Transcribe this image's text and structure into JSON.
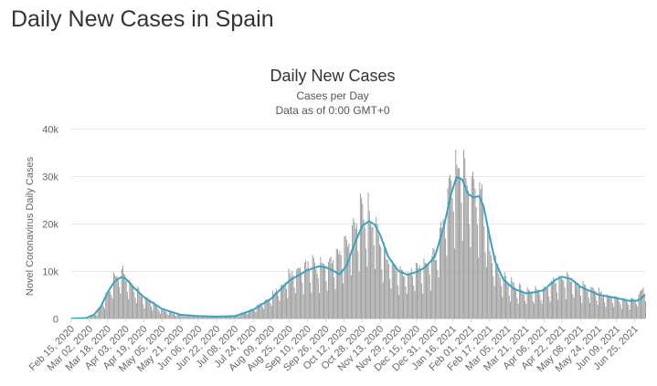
{
  "page": {
    "heading": "Daily New Cases in Spain"
  },
  "chart_data": {
    "type": "bar",
    "title": "Daily New Cases",
    "subtitle_1": "Cases per Day",
    "subtitle_2": "Data as of 0:00 GMT+0",
    "ylabel": "Novel Coronavirus Daily Cases",
    "xlabel": "",
    "ylim": [
      0,
      40000
    ],
    "yticks": [
      0,
      10000,
      20000,
      30000,
      40000
    ],
    "ytick_labels": [
      "0",
      "10k",
      "20k",
      "30k",
      "40k"
    ],
    "x_start": "2020-02-15",
    "x_end": "2021-07-04",
    "xtick_labels": [
      "Feb 15, 2020",
      "Mar 02, 2020",
      "Mar 18, 2020",
      "Apr 03, 2020",
      "Apr 19, 2020",
      "May 05, 2020",
      "May 21, 2020",
      "Jun 06, 2020",
      "Jun 22, 2020",
      "Jul 08, 2020",
      "Jul 24, 2020",
      "Aug 09, 2020",
      "Aug 25, 2020",
      "Sep 10, 2020",
      "Sep 26, 2020",
      "Oct 12, 2020",
      "Oct 28, 2020",
      "Nov 13, 2020",
      "Nov 29, 2020",
      "Dec 15, 2020",
      "Dec 31, 2020",
      "Jan 16, 2021",
      "Feb 01, 2021",
      "Feb 17, 2021",
      "Mar 05, 2021",
      "Mar 21, 2021",
      "Apr 06, 2021",
      "Apr 22, 2021",
      "May 08, 2021",
      "May 24, 2021",
      "Jun 09, 2021",
      "Jun 25, 2021"
    ],
    "grid": true,
    "series": [
      {
        "kind": "bar",
        "color": "#999999",
        "points": [
          [
            "2020-02-15",
            0
          ],
          [
            "2020-03-02",
            100
          ],
          [
            "2020-03-10",
            1500
          ],
          [
            "2020-03-18",
            5000
          ],
          [
            "2020-03-25",
            8500
          ],
          [
            "2020-03-31",
            9200
          ],
          [
            "2020-04-03",
            8500
          ],
          [
            "2020-04-10",
            6000
          ],
          [
            "2020-04-19",
            4200
          ],
          [
            "2020-05-05",
            1500
          ],
          [
            "2020-05-21",
            700
          ],
          [
            "2020-06-06",
            500
          ],
          [
            "2020-06-22",
            400
          ],
          [
            "2020-07-08",
            500
          ],
          [
            "2020-07-24",
            2000
          ],
          [
            "2020-08-09",
            4500
          ],
          [
            "2020-08-25",
            8500
          ],
          [
            "2020-09-10",
            10500
          ],
          [
            "2020-09-26",
            10500
          ],
          [
            "2020-10-05",
            12000
          ],
          [
            "2020-10-12",
            14000
          ],
          [
            "2020-10-20",
            18500
          ],
          [
            "2020-10-28",
            20500
          ],
          [
            "2020-11-05",
            20000
          ],
          [
            "2020-11-13",
            15000
          ],
          [
            "2020-11-20",
            11000
          ],
          [
            "2020-11-29",
            9500
          ],
          [
            "2020-12-07",
            9000
          ],
          [
            "2020-12-15",
            10000
          ],
          [
            "2020-12-22",
            10500
          ],
          [
            "2020-12-31",
            12500
          ],
          [
            "2021-01-08",
            20000
          ],
          [
            "2021-01-16",
            29000
          ],
          [
            "2021-01-21",
            31500
          ],
          [
            "2021-01-25",
            29500
          ],
          [
            "2021-02-01",
            26500
          ],
          [
            "2021-02-10",
            24000
          ],
          [
            "2021-02-17",
            14000
          ],
          [
            "2021-02-25",
            9000
          ],
          [
            "2021-03-05",
            7000
          ],
          [
            "2021-03-21",
            5200
          ],
          [
            "2021-04-06",
            5500
          ],
          [
            "2021-04-15",
            7500
          ],
          [
            "2021-04-22",
            8500
          ],
          [
            "2021-05-08",
            6500
          ],
          [
            "2021-05-24",
            5000
          ],
          [
            "2021-06-09",
            4000
          ],
          [
            "2021-06-25",
            3500
          ],
          [
            "2021-07-04",
            7000
          ]
        ]
      },
      {
        "kind": "line",
        "color": "#3aa3c4",
        "points": [
          [
            "2020-02-15",
            0
          ],
          [
            "2020-02-28",
            80
          ],
          [
            "2020-03-06",
            800
          ],
          [
            "2020-03-12",
            2500
          ],
          [
            "2020-03-18",
            5500
          ],
          [
            "2020-03-24",
            7800
          ],
          [
            "2020-03-30",
            8700
          ],
          [
            "2020-04-03",
            8400
          ],
          [
            "2020-04-10",
            6500
          ],
          [
            "2020-04-19",
            4500
          ],
          [
            "2020-05-05",
            2000
          ],
          [
            "2020-05-21",
            800
          ],
          [
            "2020-06-06",
            500
          ],
          [
            "2020-06-22",
            400
          ],
          [
            "2020-07-08",
            500
          ],
          [
            "2020-07-24",
            1800
          ],
          [
            "2020-08-09",
            4200
          ],
          [
            "2020-08-25",
            8000
          ],
          [
            "2020-09-10",
            10200
          ],
          [
            "2020-09-20",
            11000
          ],
          [
            "2020-09-26",
            10800
          ],
          [
            "2020-10-03",
            10000
          ],
          [
            "2020-10-08",
            9300
          ],
          [
            "2020-10-14",
            11000
          ],
          [
            "2020-10-20",
            15000
          ],
          [
            "2020-10-28",
            19500
          ],
          [
            "2020-11-03",
            20500
          ],
          [
            "2020-11-08",
            19800
          ],
          [
            "2020-11-13",
            17500
          ],
          [
            "2020-11-20",
            13000
          ],
          [
            "2020-11-29",
            10000
          ],
          [
            "2020-12-07",
            9200
          ],
          [
            "2020-12-15",
            9800
          ],
          [
            "2020-12-22",
            10700
          ],
          [
            "2020-12-31",
            13000
          ],
          [
            "2021-01-08",
            19500
          ],
          [
            "2021-01-14",
            26000
          ],
          [
            "2021-01-19",
            29800
          ],
          [
            "2021-01-24",
            29300
          ],
          [
            "2021-01-29",
            26300
          ],
          [
            "2021-02-03",
            25500
          ],
          [
            "2021-02-08",
            25800
          ],
          [
            "2021-02-12",
            23500
          ],
          [
            "2021-02-17",
            17500
          ],
          [
            "2021-02-22",
            12000
          ],
          [
            "2021-03-01",
            8300
          ],
          [
            "2021-03-10",
            6300
          ],
          [
            "2021-03-21",
            5300
          ],
          [
            "2021-03-31",
            5600
          ],
          [
            "2021-04-06",
            6000
          ],
          [
            "2021-04-15",
            8000
          ],
          [
            "2021-04-22",
            8800
          ],
          [
            "2021-04-30",
            8300
          ],
          [
            "2021-05-08",
            6700
          ],
          [
            "2021-05-24",
            5000
          ],
          [
            "2021-06-09",
            4300
          ],
          [
            "2021-06-20",
            3700
          ],
          [
            "2021-06-28",
            3800
          ],
          [
            "2021-07-04",
            5000
          ]
        ]
      }
    ]
  }
}
